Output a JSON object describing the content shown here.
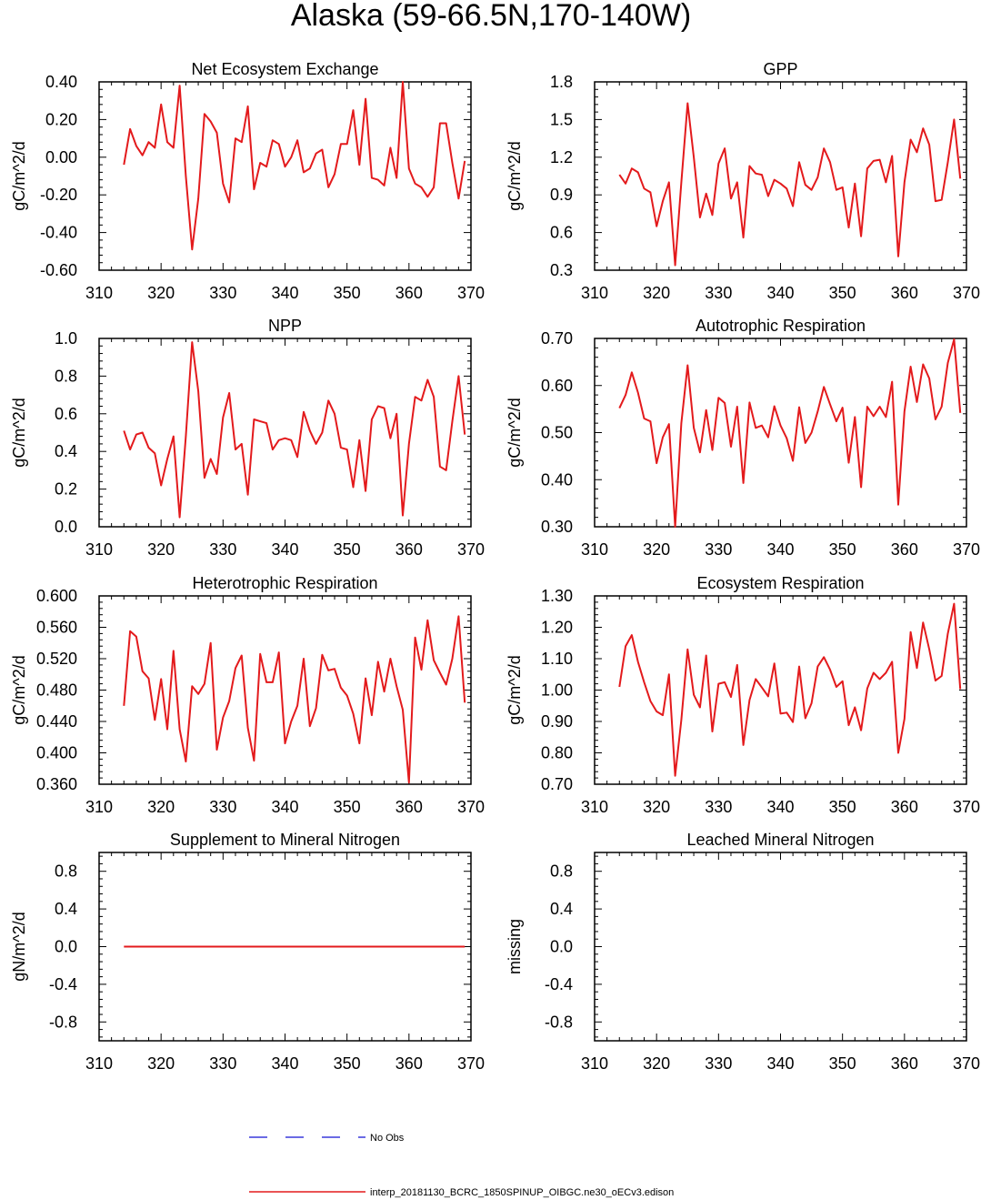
{
  "figure": {
    "title": "Alaska (59-66.5N,170-140W)",
    "legend": [
      {
        "label": "No Obs",
        "color": "#3a3adb",
        "style": "dashed"
      },
      {
        "label": "interp_20181130_BCRC_1850SPINUP_OIBGC.ne30_oECv3.edison",
        "color": "#e31a1c",
        "style": "solid"
      }
    ]
  },
  "chart_data": [
    {
      "type": "line",
      "title": "Net Ecosystem Exchange",
      "ylabel": "gC/m^2/d",
      "xlim": [
        310,
        370
      ],
      "ylim": [
        -0.6,
        0.4
      ],
      "xticks": [
        310,
        320,
        330,
        340,
        350,
        360,
        370
      ],
      "xtick_labels": [
        "310",
        "320",
        "330",
        "340",
        "350",
        "360",
        "370"
      ],
      "yticks": [
        -0.6,
        -0.4,
        -0.2,
        0.0,
        0.2,
        0.4
      ],
      "ytick_labels": [
        "-0.60",
        "-0.40",
        "-0.20",
        "0.00",
        "0.20",
        "0.40"
      ],
      "series": [
        {
          "name": "interp_20181130_BCRC_1850SPINUP_OIBGC.ne30_oECv3.edison",
          "color": "#e31a1c",
          "x": [
            314,
            315,
            316,
            317,
            318,
            319,
            320,
            321,
            322,
            323,
            324,
            325,
            326,
            327,
            328,
            329,
            330,
            331,
            332,
            333,
            334,
            335,
            336,
            337,
            338,
            339,
            340,
            341,
            342,
            343,
            344,
            345,
            346,
            347,
            348,
            349,
            350,
            351,
            352,
            353,
            354,
            355,
            356,
            357,
            358,
            359,
            360,
            361,
            362,
            363,
            364,
            365,
            366,
            367,
            368,
            369
          ],
          "values": [
            -0.04,
            0.15,
            0.06,
            0.01,
            0.08,
            0.05,
            0.28,
            0.08,
            0.05,
            0.38,
            -0.1,
            -0.49,
            -0.22,
            0.23,
            0.19,
            0.13,
            -0.14,
            -0.24,
            0.1,
            0.08,
            0.27,
            -0.17,
            -0.03,
            -0.05,
            0.09,
            0.07,
            -0.05,
            0.0,
            0.09,
            -0.08,
            -0.06,
            0.02,
            0.04,
            -0.16,
            -0.09,
            0.07,
            0.07,
            0.25,
            -0.04,
            0.31,
            -0.11,
            -0.12,
            -0.15,
            0.05,
            -0.11,
            0.4,
            -0.06,
            -0.14,
            -0.16,
            -0.21,
            -0.16,
            0.18,
            0.18,
            -0.03,
            -0.22,
            -0.02
          ]
        }
      ]
    },
    {
      "type": "line",
      "title": "GPP",
      "ylabel": "gC/m^2/d",
      "xlim": [
        310,
        370
      ],
      "ylim": [
        0.3,
        1.8
      ],
      "xticks": [
        310,
        320,
        330,
        340,
        350,
        360,
        370
      ],
      "xtick_labels": [
        "310",
        "320",
        "330",
        "340",
        "350",
        "360",
        "370"
      ],
      "yticks": [
        0.3,
        0.6,
        0.9,
        1.2,
        1.5,
        1.8
      ],
      "ytick_labels": [
        "0.3",
        "0.6",
        "0.9",
        "1.2",
        "1.5",
        "1.8"
      ],
      "series": [
        {
          "name": "interp_20181130_BCRC_1850SPINUP_OIBGC.ne30_oECv3.edison",
          "color": "#e31a1c",
          "x": [
            314,
            315,
            316,
            317,
            318,
            319,
            320,
            321,
            322,
            323,
            324,
            325,
            326,
            327,
            328,
            329,
            330,
            331,
            332,
            333,
            334,
            335,
            336,
            337,
            338,
            339,
            340,
            341,
            342,
            343,
            344,
            345,
            346,
            347,
            348,
            349,
            350,
            351,
            352,
            353,
            354,
            355,
            356,
            357,
            358,
            359,
            360,
            361,
            362,
            363,
            364,
            365,
            366,
            367,
            368,
            369
          ],
          "values": [
            1.06,
            0.99,
            1.11,
            1.08,
            0.95,
            0.92,
            0.65,
            0.85,
            1.0,
            0.34,
            1.0,
            1.63,
            1.2,
            0.72,
            0.91,
            0.74,
            1.15,
            1.27,
            0.87,
            1.0,
            0.56,
            1.13,
            1.07,
            1.06,
            0.89,
            1.02,
            0.99,
            0.95,
            0.81,
            1.16,
            0.98,
            0.94,
            1.04,
            1.27,
            1.16,
            0.94,
            0.96,
            0.64,
            0.99,
            0.57,
            1.11,
            1.17,
            1.18,
            1.0,
            1.21,
            0.41,
            1.0,
            1.34,
            1.24,
            1.43,
            1.3,
            0.85,
            0.86,
            1.16,
            1.5,
            1.03
          ]
        }
      ]
    },
    {
      "type": "line",
      "title": "NPP",
      "ylabel": "gC/m^2/d",
      "xlim": [
        310,
        370
      ],
      "ylim": [
        0.0,
        1.0
      ],
      "xticks": [
        310,
        320,
        330,
        340,
        350,
        360,
        370
      ],
      "xtick_labels": [
        "310",
        "320",
        "330",
        "340",
        "350",
        "360",
        "370"
      ],
      "yticks": [
        0.0,
        0.2,
        0.4,
        0.6,
        0.8,
        1.0
      ],
      "ytick_labels": [
        "0.0",
        "0.2",
        "0.4",
        "0.6",
        "0.8",
        "1.0"
      ],
      "series": [
        {
          "name": "interp_20181130_BCRC_1850SPINUP_OIBGC.ne30_oECv3.edison",
          "color": "#e31a1c",
          "x": [
            314,
            315,
            316,
            317,
            318,
            319,
            320,
            321,
            322,
            323,
            324,
            325,
            326,
            327,
            328,
            329,
            330,
            331,
            332,
            333,
            334,
            335,
            336,
            337,
            338,
            339,
            340,
            341,
            342,
            343,
            344,
            345,
            346,
            347,
            348,
            349,
            350,
            351,
            352,
            353,
            354,
            355,
            356,
            357,
            358,
            359,
            360,
            361,
            362,
            363,
            364,
            365,
            366,
            367,
            368,
            369
          ],
          "values": [
            0.51,
            0.41,
            0.49,
            0.5,
            0.42,
            0.39,
            0.22,
            0.36,
            0.48,
            0.05,
            0.48,
            0.98,
            0.72,
            0.26,
            0.36,
            0.28,
            0.58,
            0.71,
            0.41,
            0.44,
            0.17,
            0.57,
            0.56,
            0.55,
            0.41,
            0.46,
            0.47,
            0.46,
            0.37,
            0.61,
            0.51,
            0.44,
            0.5,
            0.67,
            0.6,
            0.42,
            0.41,
            0.21,
            0.46,
            0.19,
            0.57,
            0.64,
            0.63,
            0.47,
            0.6,
            0.06,
            0.44,
            0.69,
            0.67,
            0.78,
            0.69,
            0.32,
            0.3,
            0.56,
            0.8,
            0.49
          ]
        }
      ]
    },
    {
      "type": "line",
      "title": "Autotrophic Respiration",
      "ylabel": "gC/m^2/d",
      "xlim": [
        310,
        370
      ],
      "ylim": [
        0.3,
        0.7
      ],
      "xticks": [
        310,
        320,
        330,
        340,
        350,
        360,
        370
      ],
      "xtick_labels": [
        "310",
        "320",
        "330",
        "340",
        "350",
        "360",
        "370"
      ],
      "yticks": [
        0.3,
        0.4,
        0.5,
        0.6,
        0.7
      ],
      "ytick_labels": [
        "0.30",
        "0.40",
        "0.50",
        "0.60",
        "0.70"
      ],
      "series": [
        {
          "name": "interp_20181130_BCRC_1850SPINUP_OIBGC.ne30_oECv3.edison",
          "color": "#e31a1c",
          "x": [
            314,
            315,
            316,
            317,
            318,
            319,
            320,
            321,
            322,
            323,
            324,
            325,
            326,
            327,
            328,
            329,
            330,
            331,
            332,
            333,
            334,
            335,
            336,
            337,
            338,
            339,
            340,
            341,
            342,
            343,
            344,
            345,
            346,
            347,
            348,
            349,
            350,
            351,
            352,
            353,
            354,
            355,
            356,
            357,
            358,
            359,
            360,
            361,
            362,
            363,
            364,
            365,
            366,
            367,
            368,
            369
          ],
          "values": [
            0.552,
            0.58,
            0.628,
            0.585,
            0.53,
            0.524,
            0.435,
            0.49,
            0.518,
            0.3,
            0.52,
            0.643,
            0.51,
            0.458,
            0.548,
            0.463,
            0.574,
            0.563,
            0.47,
            0.555,
            0.393,
            0.564,
            0.51,
            0.515,
            0.49,
            0.556,
            0.515,
            0.488,
            0.44,
            0.554,
            0.478,
            0.5,
            0.545,
            0.597,
            0.56,
            0.524,
            0.553,
            0.436,
            0.533,
            0.384,
            0.555,
            0.535,
            0.555,
            0.533,
            0.608,
            0.347,
            0.545,
            0.64,
            0.565,
            0.645,
            0.615,
            0.528,
            0.555,
            0.648,
            0.698,
            0.542
          ]
        }
      ]
    },
    {
      "type": "line",
      "title": "Heterotrophic Respiration",
      "ylabel": "gC/m^2/d",
      "xlim": [
        310,
        370
      ],
      "ylim": [
        0.36,
        0.6
      ],
      "xticks": [
        310,
        320,
        330,
        340,
        350,
        360,
        370
      ],
      "xtick_labels": [
        "310",
        "320",
        "330",
        "340",
        "350",
        "360",
        "370"
      ],
      "yticks": [
        0.36,
        0.4,
        0.44,
        0.48,
        0.52,
        0.56,
        0.6
      ],
      "ytick_labels": [
        "0.360",
        "0.400",
        "0.440",
        "0.480",
        "0.520",
        "0.560",
        "0.600"
      ],
      "series": [
        {
          "name": "interp_20181130_BCRC_1850SPINUP_OIBGC.ne30_oECv3.edison",
          "color": "#e31a1c",
          "x": [
            314,
            315,
            316,
            317,
            318,
            319,
            320,
            321,
            322,
            323,
            324,
            325,
            326,
            327,
            328,
            329,
            330,
            331,
            332,
            333,
            334,
            335,
            336,
            337,
            338,
            339,
            340,
            341,
            342,
            343,
            344,
            345,
            346,
            347,
            348,
            349,
            350,
            351,
            352,
            353,
            354,
            355,
            356,
            357,
            358,
            359,
            360,
            361,
            362,
            363,
            364,
            365,
            366,
            367,
            368,
            369
          ],
          "values": [
            0.46,
            0.555,
            0.548,
            0.504,
            0.495,
            0.442,
            0.494,
            0.43,
            0.53,
            0.43,
            0.389,
            0.485,
            0.475,
            0.488,
            0.54,
            0.404,
            0.445,
            0.466,
            0.508,
            0.524,
            0.432,
            0.39,
            0.526,
            0.49,
            0.49,
            0.528,
            0.412,
            0.44,
            0.46,
            0.52,
            0.434,
            0.457,
            0.525,
            0.505,
            0.507,
            0.483,
            0.473,
            0.45,
            0.412,
            0.495,
            0.448,
            0.516,
            0.478,
            0.52,
            0.485,
            0.455,
            0.362,
            0.547,
            0.506,
            0.569,
            0.518,
            0.502,
            0.487,
            0.52,
            0.574,
            0.464
          ]
        }
      ]
    },
    {
      "type": "line",
      "title": "Ecosystem Respiration",
      "ylabel": "gC/m^2/d",
      "xlim": [
        310,
        370
      ],
      "ylim": [
        0.7,
        1.3
      ],
      "xticks": [
        310,
        320,
        330,
        340,
        350,
        360,
        370
      ],
      "xtick_labels": [
        "310",
        "320",
        "330",
        "340",
        "350",
        "360",
        "370"
      ],
      "yticks": [
        0.7,
        0.8,
        0.9,
        1.0,
        1.1,
        1.2,
        1.3
      ],
      "ytick_labels": [
        "0.70",
        "0.80",
        "0.90",
        "1.00",
        "1.10",
        "1.20",
        "1.30"
      ],
      "series": [
        {
          "name": "interp_20181130_BCRC_1850SPINUP_OIBGC.ne30_oECv3.edison",
          "color": "#e31a1c",
          "x": [
            314,
            315,
            316,
            317,
            318,
            319,
            320,
            321,
            322,
            323,
            324,
            325,
            326,
            327,
            328,
            329,
            330,
            331,
            332,
            333,
            334,
            335,
            336,
            337,
            338,
            339,
            340,
            341,
            342,
            343,
            344,
            345,
            346,
            347,
            348,
            349,
            350,
            351,
            352,
            353,
            354,
            355,
            356,
            357,
            358,
            359,
            360,
            361,
            362,
            363,
            364,
            365,
            366,
            367,
            368,
            369
          ],
          "values": [
            1.01,
            1.14,
            1.175,
            1.09,
            1.025,
            0.965,
            0.932,
            0.92,
            1.05,
            0.727,
            0.905,
            1.13,
            0.985,
            0.945,
            1.11,
            0.868,
            1.02,
            1.025,
            0.978,
            1.08,
            0.825,
            0.968,
            1.035,
            1.008,
            0.98,
            1.085,
            0.925,
            0.928,
            0.898,
            1.075,
            0.91,
            0.958,
            1.075,
            1.105,
            1.065,
            1.01,
            1.028,
            0.888,
            0.945,
            0.872,
            1.005,
            1.055,
            1.035,
            1.055,
            1.09,
            0.8,
            0.908,
            1.185,
            1.07,
            1.215,
            1.13,
            1.03,
            1.045,
            1.18,
            1.275,
            1.003
          ]
        }
      ]
    },
    {
      "type": "line",
      "title": "Supplement to Mineral Nitrogen",
      "ylabel": "gN/m^2/d",
      "xlim": [
        310,
        370
      ],
      "ylim": [
        -1.0,
        1.0
      ],
      "xticks": [
        310,
        320,
        330,
        340,
        350,
        360,
        370
      ],
      "xtick_labels": [
        "310",
        "320",
        "330",
        "340",
        "350",
        "360",
        "370"
      ],
      "yticks": [
        -0.8,
        -0.4,
        0.0,
        0.4,
        0.8
      ],
      "ytick_labels": [
        "-0.8",
        "-0.4",
        "0.0",
        "0.4",
        "0.8"
      ],
      "series": [
        {
          "name": "interp_20181130_BCRC_1850SPINUP_OIBGC.ne30_oECv3.edison",
          "color": "#e31a1c",
          "x": [
            314,
            369
          ],
          "values": [
            0.0,
            0.0
          ]
        }
      ]
    },
    {
      "type": "line",
      "title": "Leached Mineral Nitrogen",
      "ylabel": "missing",
      "xlim": [
        310,
        370
      ],
      "ylim": [
        -1.0,
        1.0
      ],
      "xticks": [
        310,
        320,
        330,
        340,
        350,
        360,
        370
      ],
      "xtick_labels": [
        "310",
        "320",
        "330",
        "340",
        "350",
        "360",
        "370"
      ],
      "yticks": [
        -0.8,
        -0.4,
        0.0,
        0.4,
        0.8
      ],
      "ytick_labels": [
        "-0.8",
        "-0.4",
        "0.0",
        "0.4",
        "0.8"
      ],
      "series": []
    }
  ]
}
